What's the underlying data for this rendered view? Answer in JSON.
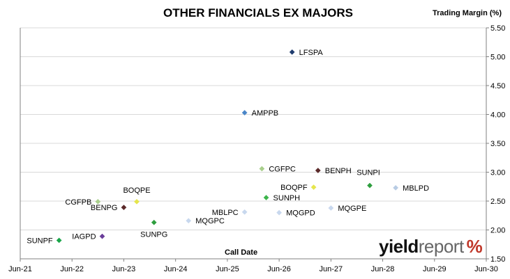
{
  "chart_data": {
    "type": "scatter",
    "title": "OTHER FINANCIALS EX MAJORS",
    "xlabel": "Call Date",
    "ylabel": "Trading Margin (%)",
    "x_ticks": [
      "Jun-21",
      "Jun-22",
      "Jun-23",
      "Jun-24",
      "Jun-25",
      "Jun-26",
      "Jun-27",
      "Jun-28",
      "Jun-29",
      "Jun-30"
    ],
    "xlim": [
      "2021-06",
      "2030-06"
    ],
    "ylim": [
      1.5,
      5.5
    ],
    "y_ticks": [
      "1.50",
      "2.00",
      "2.50",
      "3.00",
      "3.50",
      "4.00",
      "4.50",
      "5.00",
      "5.50"
    ],
    "grid": "horizontal",
    "legend": "none",
    "points": [
      {
        "label": "LFSPA",
        "x": "2026-09",
        "y": 5.08,
        "color": "#1f3c6e"
      },
      {
        "label": "AMPPB",
        "x": "2025-10",
        "y": 4.03,
        "color": "#4a86c8"
      },
      {
        "label": "CGFPC",
        "x": "2026-02",
        "y": 3.06,
        "color": "#a9cf8c"
      },
      {
        "label": "BENPH",
        "x": "2027-03",
        "y": 3.03,
        "color": "#5b2a2a"
      },
      {
        "label": "SUNPI",
        "x": "2028-03",
        "y": 2.77,
        "color": "#2e9e3e"
      },
      {
        "label": "MBLPD",
        "x": "2028-09",
        "y": 2.73,
        "color": "#b8cce4"
      },
      {
        "label": "BOQPF",
        "x": "2027-02",
        "y": 2.74,
        "color": "#e6e64c"
      },
      {
        "label": "SUNPH",
        "x": "2026-03",
        "y": 2.56,
        "color": "#3cb54b"
      },
      {
        "label": "CGFPB",
        "x": "2022-12",
        "y": 2.49,
        "color": "#a9cf8c"
      },
      {
        "label": "BOQPE",
        "x": "2023-09",
        "y": 2.49,
        "color": "#e6e64c"
      },
      {
        "label": "BENPG",
        "x": "2023-06",
        "y": 2.39,
        "color": "#5b2a2a"
      },
      {
        "label": "MQGPE",
        "x": "2027-06",
        "y": 2.38,
        "color": "#c8d8ee"
      },
      {
        "label": "MBLPC",
        "x": "2025-10",
        "y": 2.31,
        "color": "#c8d8ee"
      },
      {
        "label": "MQGPD",
        "x": "2026-06",
        "y": 2.3,
        "color": "#c8d8ee"
      },
      {
        "label": "MQGPC",
        "x": "2024-09",
        "y": 2.16,
        "color": "#c8d8ee"
      },
      {
        "label": "SUNPG",
        "x": "2024-01",
        "y": 2.13,
        "color": "#2e9e3e"
      },
      {
        "label": "IAGPD",
        "x": "2023-01",
        "y": 1.89,
        "color": "#6a3d9a"
      },
      {
        "label": "SUNPF",
        "x": "2022-03",
        "y": 1.82,
        "color": "#1aa64a"
      }
    ]
  },
  "logo": {
    "part1": "yield",
    "part2": "report",
    "symbol": "%"
  }
}
